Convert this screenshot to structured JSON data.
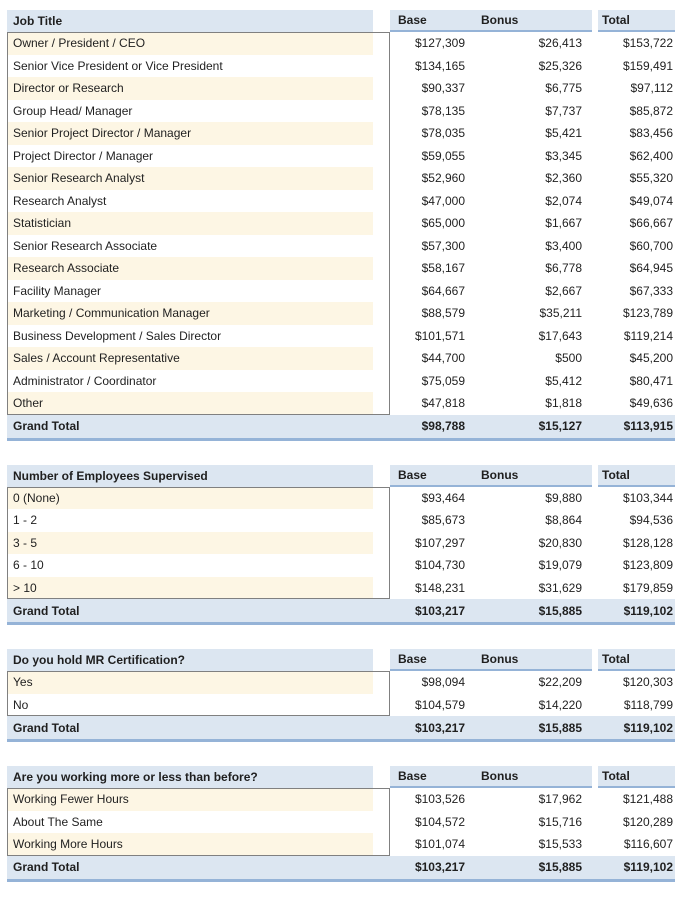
{
  "style": {
    "header_bg": "#DCE6F1",
    "grand_total_bg": "#DCE6F1",
    "row_alt_bg": "#FDF6E4",
    "accent_underline": "#95B3D7",
    "label_box_border": "#808080",
    "text_color": "#1F1F1F"
  },
  "tables": [
    {
      "title": "Job Title",
      "columns": [
        "Base",
        "Bonus",
        "Total"
      ],
      "rows": [
        [
          "Owner / President / CEO",
          "$127,309",
          "$26,413",
          "$153,722"
        ],
        [
          "Senior Vice President or Vice President",
          "$134,165",
          "$25,326",
          "$159,491"
        ],
        [
          "Director or Research",
          "$90,337",
          "$6,775",
          "$97,112"
        ],
        [
          "Group Head/ Manager",
          "$78,135",
          "$7,737",
          "$85,872"
        ],
        [
          "Senior Project Director / Manager",
          "$78,035",
          "$5,421",
          "$83,456"
        ],
        [
          "Project Director / Manager",
          "$59,055",
          "$3,345",
          "$62,400"
        ],
        [
          "Senior Research Analyst",
          "$52,960",
          "$2,360",
          "$55,320"
        ],
        [
          "Research Analyst",
          "$47,000",
          "$2,074",
          "$49,074"
        ],
        [
          "Statistician",
          "$65,000",
          "$1,667",
          "$66,667"
        ],
        [
          "Senior Research Associate",
          "$57,300",
          "$3,400",
          "$60,700"
        ],
        [
          "Research Associate",
          "$58,167",
          "$6,778",
          "$64,945"
        ],
        [
          "Facility Manager",
          "$64,667",
          "$2,667",
          "$67,333"
        ],
        [
          "Marketing / Communication Manager",
          "$88,579",
          "$35,211",
          "$123,789"
        ],
        [
          "Business Development / Sales Director",
          "$101,571",
          "$17,643",
          "$119,214"
        ],
        [
          "Sales / Account Representative",
          "$44,700",
          "$500",
          "$45,200"
        ],
        [
          "Administrator / Coordinator",
          "$75,059",
          "$5,412",
          "$80,471"
        ],
        [
          "Other",
          "$47,818",
          "$1,818",
          "$49,636"
        ]
      ],
      "grand_total": [
        "Grand Total",
        "$98,788",
        "$15,127",
        "$113,915"
      ]
    },
    {
      "title": "Number of Employees Supervised",
      "columns": [
        "Base",
        "Bonus",
        "Total"
      ],
      "rows": [
        [
          "0 (None)",
          "$93,464",
          "$9,880",
          "$103,344"
        ],
        [
          "1 - 2",
          "$85,673",
          "$8,864",
          "$94,536"
        ],
        [
          "3 - 5",
          "$107,297",
          "$20,830",
          "$128,128"
        ],
        [
          "6 - 10",
          "$104,730",
          "$19,079",
          "$123,809"
        ],
        [
          "> 10",
          "$148,231",
          "$31,629",
          "$179,859"
        ]
      ],
      "grand_total": [
        "Grand Total",
        "$103,217",
        "$15,885",
        "$119,102"
      ]
    },
    {
      "title": "Do you hold MR Certification?",
      "columns": [
        "Base",
        "Bonus",
        "Total"
      ],
      "rows": [
        [
          "Yes",
          "$98,094",
          "$22,209",
          "$120,303"
        ],
        [
          "No",
          "$104,579",
          "$14,220",
          "$118,799"
        ]
      ],
      "grand_total": [
        "Grand Total",
        "$103,217",
        "$15,885",
        "$119,102"
      ]
    },
    {
      "title": "Are you working more or less than before?",
      "columns": [
        "Base",
        "Bonus",
        "Total"
      ],
      "rows": [
        [
          "Working Fewer Hours",
          "$103,526",
          "$17,962",
          "$121,488"
        ],
        [
          "About The Same",
          "$104,572",
          "$15,716",
          "$120,289"
        ],
        [
          "Working More Hours",
          "$101,074",
          "$15,533",
          "$116,607"
        ]
      ],
      "grand_total": [
        "Grand Total",
        "$103,217",
        "$15,885",
        "$119,102"
      ]
    }
  ]
}
